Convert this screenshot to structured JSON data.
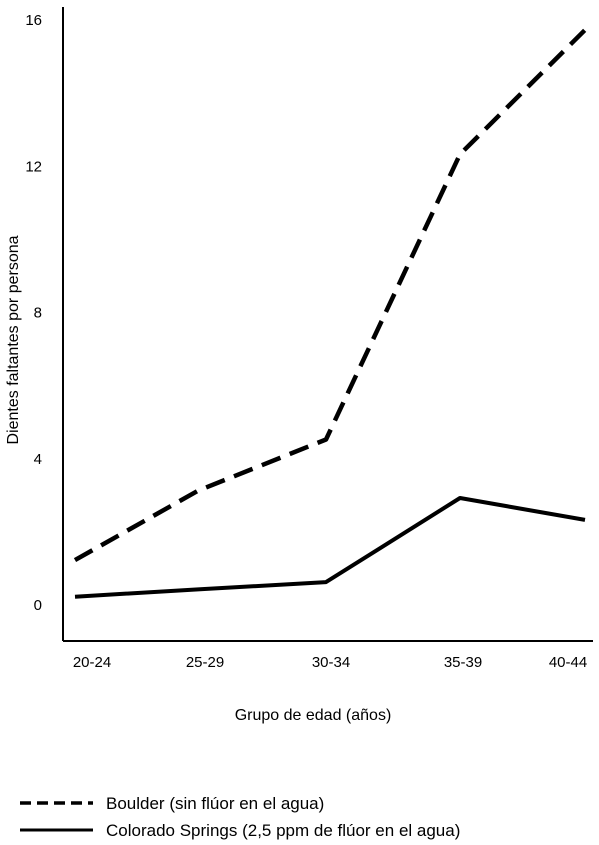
{
  "chart_data": {
    "type": "line",
    "title": "",
    "xlabel": "Grupo de edad (años)",
    "ylabel": "Dientes faltantes por persona",
    "categories": [
      "20-24",
      "25-29",
      "30-34",
      "35-39",
      "40-44"
    ],
    "ylim": [
      0,
      16
    ],
    "yticks": [
      "0",
      "4",
      "8",
      "12",
      "16"
    ],
    "grid": false,
    "legend_position": "bottom-left",
    "series": [
      {
        "name": "Boulder (sin flúor en el agua)",
        "style": "dashed",
        "color": "#000000",
        "values": [
          1.2,
          3.1,
          4.5,
          12.3,
          15.7
        ]
      },
      {
        "name": "Colorado Springs (2,5 ppm de flúor en el agua)",
        "style": "solid",
        "color": "#000000",
        "values": [
          0.2,
          0.4,
          0.6,
          2.9,
          2.3
        ]
      }
    ]
  }
}
